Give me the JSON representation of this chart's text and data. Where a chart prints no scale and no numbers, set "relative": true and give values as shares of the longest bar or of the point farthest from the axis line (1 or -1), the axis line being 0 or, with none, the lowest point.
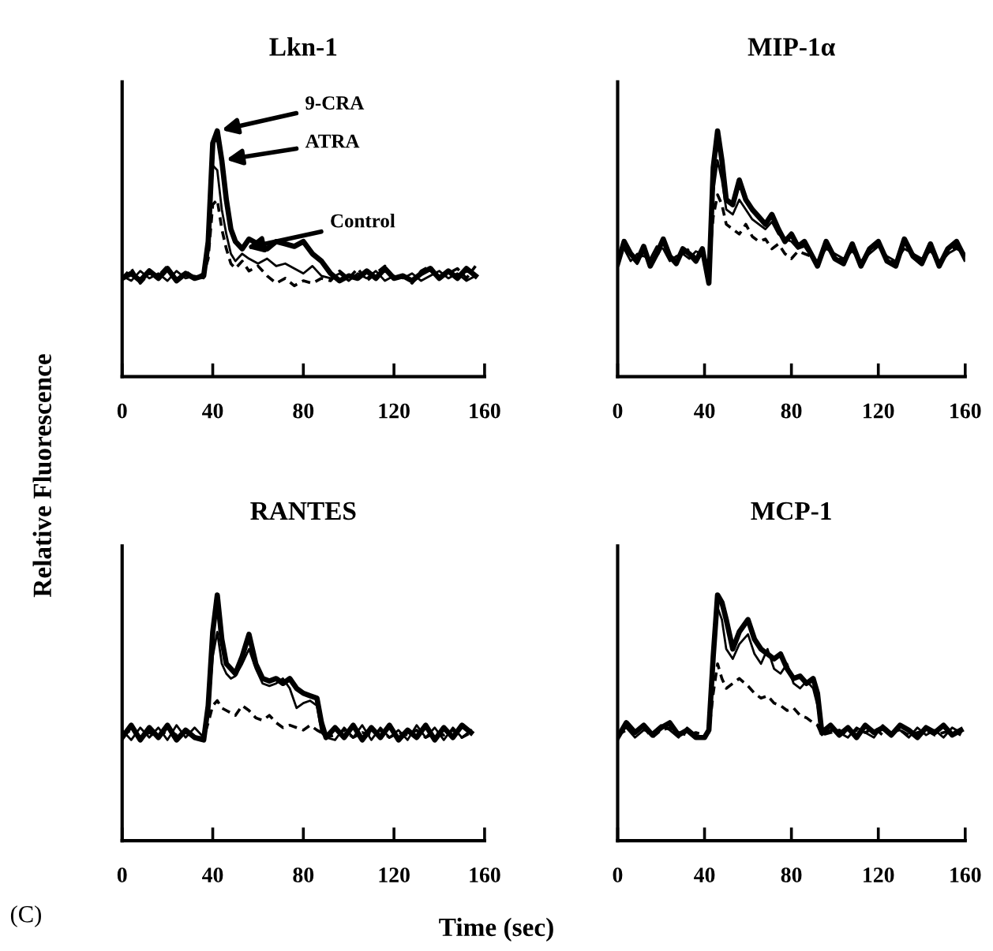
{
  "chart_data": [
    {
      "type": "line",
      "title": "Lkn-1",
      "ylabel": "Relative Fluorescence",
      "relative": true,
      "xlim": [
        0,
        160
      ],
      "xticks": [
        0,
        40,
        80,
        120,
        160
      ],
      "x": [
        0,
        4,
        8,
        12,
        16,
        20,
        24,
        28,
        32,
        36,
        38,
        40,
        42,
        44,
        46,
        48,
        50,
        53,
        56,
        60,
        64,
        68,
        72,
        76,
        80,
        84,
        88,
        92,
        96,
        100,
        104,
        108,
        112,
        116,
        120,
        124,
        128,
        132,
        136,
        140,
        144,
        148,
        152,
        156
      ],
      "series": [
        {
          "color": "#000000",
          "line_style": "solid",
          "values": [
            0.4,
            0.42,
            0.39,
            0.43,
            0.4,
            0.44,
            0.39,
            0.42,
            0.4,
            0.41,
            0.55,
            0.95,
            1.0,
            0.88,
            0.72,
            0.6,
            0.55,
            0.52,
            0.56,
            0.54,
            0.52,
            0.55,
            0.54,
            0.53,
            0.55,
            0.5,
            0.47,
            0.42,
            0.39,
            0.41,
            0.4,
            0.43,
            0.4,
            0.44,
            0.4,
            0.41,
            0.39,
            0.42,
            0.44,
            0.4,
            0.43,
            0.4,
            0.44,
            0.41
          ]
        },
        {
          "color": "#000000",
          "line_style": "solid",
          "values": [
            0.41,
            0.39,
            0.43,
            0.4,
            0.42,
            0.39,
            0.43,
            0.4,
            0.41,
            0.4,
            0.5,
            0.86,
            0.84,
            0.68,
            0.58,
            0.5,
            0.47,
            0.5,
            0.48,
            0.46,
            0.48,
            0.45,
            0.46,
            0.44,
            0.42,
            0.45,
            0.41,
            0.4,
            0.42,
            0.39,
            0.42,
            0.4,
            0.43,
            0.39,
            0.41,
            0.4,
            0.42,
            0.39,
            0.41,
            0.43,
            0.4,
            0.42,
            0.39,
            0.41
          ]
        },
        {
          "color": "#000000",
          "line_style": "dashed",
          "values": [
            0.4,
            0.44,
            0.38,
            0.42,
            0.41,
            0.45,
            0.39,
            0.43,
            0.4,
            0.42,
            0.48,
            0.7,
            0.72,
            0.6,
            0.52,
            0.46,
            0.44,
            0.47,
            0.43,
            0.45,
            0.41,
            0.38,
            0.4,
            0.37,
            0.39,
            0.38,
            0.4,
            0.39,
            0.43,
            0.4,
            0.44,
            0.39,
            0.42,
            0.45,
            0.4,
            0.41,
            0.38,
            0.43,
            0.45,
            0.4,
            0.42,
            0.44,
            0.4,
            0.45
          ]
        }
      ],
      "annotations": [
        {
          "text": "9-CRA",
          "x": 42,
          "y": 1.0
        },
        {
          "text": "ATRA",
          "x": 44,
          "y": 0.88
        },
        {
          "text": "Control",
          "x": 53,
          "y": 0.52
        }
      ]
    },
    {
      "type": "line",
      "title": "MIP-1α",
      "relative": true,
      "xlim": [
        0,
        160
      ],
      "xticks": [
        0,
        40,
        80,
        120,
        160
      ],
      "x": [
        0,
        3,
        6,
        9,
        12,
        15,
        18,
        21,
        24,
        27,
        30,
        33,
        36,
        39,
        42,
        44,
        46,
        48,
        50,
        53,
        56,
        59,
        62,
        65,
        68,
        71,
        74,
        77,
        80,
        83,
        86,
        89,
        92,
        96,
        100,
        104,
        108,
        112,
        116,
        120,
        124,
        128,
        132,
        136,
        140,
        144,
        148,
        152,
        156,
        160
      ],
      "series": [
        {
          "color": "#000000",
          "line_style": "solid",
          "values": [
            0.46,
            0.55,
            0.5,
            0.47,
            0.53,
            0.45,
            0.5,
            0.56,
            0.49,
            0.46,
            0.52,
            0.5,
            0.47,
            0.52,
            0.38,
            0.85,
            1.0,
            0.88,
            0.72,
            0.7,
            0.8,
            0.72,
            0.68,
            0.65,
            0.62,
            0.66,
            0.6,
            0.55,
            0.58,
            0.53,
            0.55,
            0.5,
            0.45,
            0.55,
            0.48,
            0.46,
            0.54,
            0.45,
            0.52,
            0.55,
            0.47,
            0.45,
            0.56,
            0.49,
            0.46,
            0.54,
            0.45,
            0.52,
            0.55,
            0.48
          ]
        },
        {
          "color": "#000000",
          "line_style": "solid",
          "values": [
            0.5,
            0.52,
            0.47,
            0.5,
            0.49,
            0.48,
            0.53,
            0.52,
            0.47,
            0.49,
            0.5,
            0.48,
            0.51,
            0.5,
            0.42,
            0.75,
            0.88,
            0.8,
            0.68,
            0.66,
            0.72,
            0.68,
            0.64,
            0.62,
            0.6,
            0.63,
            0.58,
            0.56,
            0.55,
            0.52,
            0.53,
            0.49,
            0.47,
            0.52,
            0.5,
            0.48,
            0.51,
            0.47,
            0.5,
            0.53,
            0.49,
            0.47,
            0.52,
            0.5,
            0.48,
            0.51,
            0.47,
            0.5,
            0.52,
            0.5
          ]
        },
        {
          "color": "#000000",
          "line_style": "dashed",
          "values": [
            0.48,
            0.53,
            0.49,
            0.46,
            0.51,
            0.47,
            0.49,
            0.54,
            0.5,
            0.47,
            0.5,
            0.52,
            0.48,
            0.5,
            0.45,
            0.65,
            0.74,
            0.7,
            0.62,
            0.6,
            0.58,
            0.62,
            0.57,
            0.55,
            0.56,
            0.52,
            0.54,
            0.5,
            0.48,
            0.51,
            0.5,
            0.49,
            0.46,
            0.53,
            0.49,
            0.47,
            0.52,
            0.46,
            0.51,
            0.54,
            0.48,
            0.46,
            0.53,
            0.5,
            0.47,
            0.52,
            0.46,
            0.5,
            0.53,
            0.49
          ]
        }
      ]
    },
    {
      "type": "line",
      "title": "RANTES",
      "xlabel": "Time (sec)",
      "relative": true,
      "xlim": [
        0,
        160
      ],
      "xticks": [
        0,
        40,
        80,
        120,
        160
      ],
      "x": [
        0,
        4,
        8,
        12,
        16,
        20,
        24,
        28,
        32,
        36,
        38,
        40,
        42,
        44,
        46,
        48,
        50,
        53,
        56,
        59,
        62,
        65,
        68,
        71,
        74,
        77,
        80,
        83,
        86,
        88,
        90,
        94,
        98,
        102,
        106,
        110,
        114,
        118,
        122,
        126,
        130,
        134,
        138,
        142,
        146,
        150,
        154
      ],
      "series": [
        {
          "color": "#000000",
          "line_style": "solid",
          "values": [
            0.42,
            0.47,
            0.41,
            0.46,
            0.42,
            0.47,
            0.41,
            0.45,
            0.42,
            0.41,
            0.55,
            0.85,
            1.0,
            0.82,
            0.72,
            0.7,
            0.68,
            0.75,
            0.84,
            0.72,
            0.66,
            0.65,
            0.66,
            0.64,
            0.66,
            0.62,
            0.6,
            0.59,
            0.58,
            0.48,
            0.42,
            0.46,
            0.42,
            0.47,
            0.41,
            0.46,
            0.42,
            0.47,
            0.41,
            0.45,
            0.42,
            0.47,
            0.41,
            0.46,
            0.42,
            0.47,
            0.44
          ]
        },
        {
          "color": "#000000",
          "line_style": "solid",
          "values": [
            0.45,
            0.41,
            0.46,
            0.42,
            0.46,
            0.41,
            0.47,
            0.42,
            0.46,
            0.42,
            0.52,
            0.75,
            0.85,
            0.72,
            0.68,
            0.66,
            0.67,
            0.72,
            0.78,
            0.7,
            0.64,
            0.63,
            0.64,
            0.66,
            0.62,
            0.54,
            0.56,
            0.57,
            0.55,
            0.44,
            0.42,
            0.41,
            0.46,
            0.42,
            0.47,
            0.41,
            0.46,
            0.42,
            0.45,
            0.41,
            0.47,
            0.42,
            0.46,
            0.41,
            0.46,
            0.42,
            0.45
          ]
        },
        {
          "color": "#000000",
          "line_style": "dashed",
          "values": [
            0.43,
            0.45,
            0.42,
            0.44,
            0.42,
            0.45,
            0.43,
            0.44,
            0.42,
            0.42,
            0.48,
            0.55,
            0.57,
            0.54,
            0.53,
            0.52,
            0.51,
            0.55,
            0.53,
            0.5,
            0.49,
            0.51,
            0.48,
            0.46,
            0.47,
            0.46,
            0.45,
            0.47,
            0.45,
            0.44,
            0.42,
            0.43,
            0.45,
            0.42,
            0.44,
            0.43,
            0.45,
            0.42,
            0.44,
            0.43,
            0.45,
            0.42,
            0.44,
            0.43,
            0.45,
            0.42,
            0.44
          ]
        }
      ],
      "annotations": [
        "(C)"
      ]
    },
    {
      "type": "line",
      "title": "MCP-1",
      "relative": true,
      "xlim": [
        0,
        160
      ],
      "xticks": [
        0,
        40,
        80,
        120,
        160
      ],
      "x": [
        0,
        4,
        8,
        12,
        16,
        20,
        24,
        28,
        32,
        36,
        40,
        42,
        44,
        46,
        48,
        50,
        53,
        56,
        60,
        63,
        66,
        69,
        72,
        75,
        78,
        81,
        84,
        87,
        90,
        92,
        94,
        98,
        102,
        106,
        110,
        114,
        118,
        122,
        126,
        130,
        134,
        138,
        142,
        146,
        150,
        154,
        158
      ],
      "series": [
        {
          "color": "#000000",
          "line_style": "solid",
          "values": [
            0.42,
            0.48,
            0.44,
            0.47,
            0.43,
            0.46,
            0.48,
            0.43,
            0.45,
            0.42,
            0.42,
            0.45,
            0.75,
            1.0,
            0.97,
            0.9,
            0.78,
            0.85,
            0.9,
            0.82,
            0.78,
            0.76,
            0.74,
            0.76,
            0.7,
            0.66,
            0.67,
            0.64,
            0.66,
            0.6,
            0.44,
            0.47,
            0.43,
            0.46,
            0.42,
            0.47,
            0.44,
            0.46,
            0.43,
            0.47,
            0.45,
            0.42,
            0.46,
            0.44,
            0.47,
            0.43,
            0.45
          ]
        },
        {
          "color": "#000000",
          "line_style": "solid",
          "values": [
            0.44,
            0.46,
            0.42,
            0.45,
            0.44,
            0.47,
            0.45,
            0.42,
            0.46,
            0.43,
            0.42,
            0.44,
            0.7,
            0.95,
            0.9,
            0.78,
            0.74,
            0.8,
            0.84,
            0.76,
            0.72,
            0.78,
            0.7,
            0.68,
            0.72,
            0.64,
            0.62,
            0.65,
            0.62,
            0.55,
            0.43,
            0.45,
            0.44,
            0.42,
            0.46,
            0.44,
            0.42,
            0.47,
            0.44,
            0.45,
            0.42,
            0.46,
            0.43,
            0.45,
            0.42,
            0.46,
            0.44
          ]
        },
        {
          "color": "#000000",
          "line_style": "dashed",
          "values": [
            0.43,
            0.45,
            0.44,
            0.46,
            0.42,
            0.45,
            0.46,
            0.44,
            0.43,
            0.44,
            0.43,
            0.44,
            0.6,
            0.72,
            0.66,
            0.62,
            0.64,
            0.66,
            0.63,
            0.6,
            0.58,
            0.59,
            0.56,
            0.55,
            0.53,
            0.54,
            0.51,
            0.5,
            0.48,
            0.47,
            0.43,
            0.44,
            0.45,
            0.43,
            0.45,
            0.44,
            0.46,
            0.43,
            0.44,
            0.45,
            0.43,
            0.44,
            0.45,
            0.43,
            0.44,
            0.45,
            0.43
          ]
        }
      ]
    }
  ]
}
